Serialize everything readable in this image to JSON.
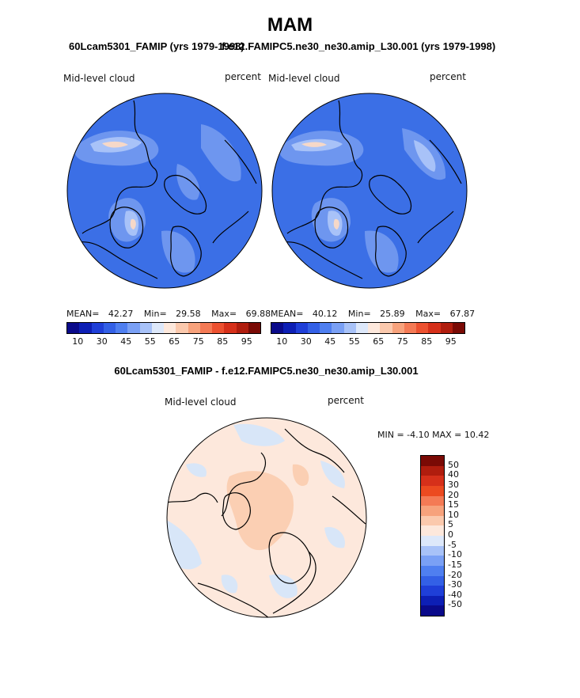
{
  "figure": {
    "title": "MAM",
    "left_panel": {
      "subtitle": "60Lcam5301_FAMIP (yrs 1979-1998)",
      "variable": "Mid-level cloud",
      "units": "percent",
      "mean_label": "MEAN=",
      "mean": "42.27",
      "min_label": "Min=",
      "min": "29.58",
      "max_label": "Max=",
      "max": "69.88"
    },
    "right_panel": {
      "subtitle": "f.e12.FAMIPC5.ne30_ne30.amip_L30.001 (yrs 1979-1998)",
      "variable": "Mid-level cloud",
      "units": "percent",
      "mean_label": "MEAN=",
      "mean": "40.12",
      "min_label": "Min=",
      "min": "25.89",
      "max_label": "Max=",
      "max": "67.87"
    },
    "diff_panel": {
      "title": "60Lcam5301_FAMIP - f.e12.FAMIPC5.ne30_ne30.amip_L30.001",
      "variable": "Mid-level cloud",
      "units": "percent",
      "minmax_text": "MIN =   -4.10 MAX =   10.42"
    }
  },
  "colorbar_abs": {
    "colors": [
      "#0a0a8a",
      "#0d1fb5",
      "#1f3fd8",
      "#3360e6",
      "#4f7ff0",
      "#7aa0f5",
      "#a8c2f8",
      "#dde8fa",
      "#fde8dc",
      "#fbc9ad",
      "#f7a27c",
      "#f47a55",
      "#ec5130",
      "#d6301a",
      "#b01d0e",
      "#7a0a05"
    ],
    "tick_labels": [
      "10",
      "30",
      "45",
      "55",
      "65",
      "75",
      "85",
      "95"
    ]
  },
  "colorbar_diff": {
    "colors": [
      "#7a0a05",
      "#b01d0e",
      "#d6301a",
      "#ec4a20",
      "#f47a55",
      "#f7a27c",
      "#fbc9ad",
      "#fde8dc",
      "#dde8fa",
      "#a8c2f8",
      "#7aa0f5",
      "#4f7ff0",
      "#3360e6",
      "#1f3fd8",
      "#0d1fb5",
      "#0a0a8a"
    ],
    "tick_labels": [
      "50",
      "40",
      "30",
      "20",
      "15",
      "10",
      "5",
      "0",
      "-5",
      "-10",
      "-15",
      "-20",
      "-30",
      "-40",
      "-50"
    ]
  },
  "map_colors": {
    "abs_base": "#3b6fe6",
    "abs_light": "#6e96ef",
    "abs_lighter": "#a8c2f8",
    "abs_peak": "#f6d8c8",
    "diff_base": "#fde8dc",
    "diff_pos": "#fbcfb3",
    "diff_neg": "#d8e6f8"
  }
}
